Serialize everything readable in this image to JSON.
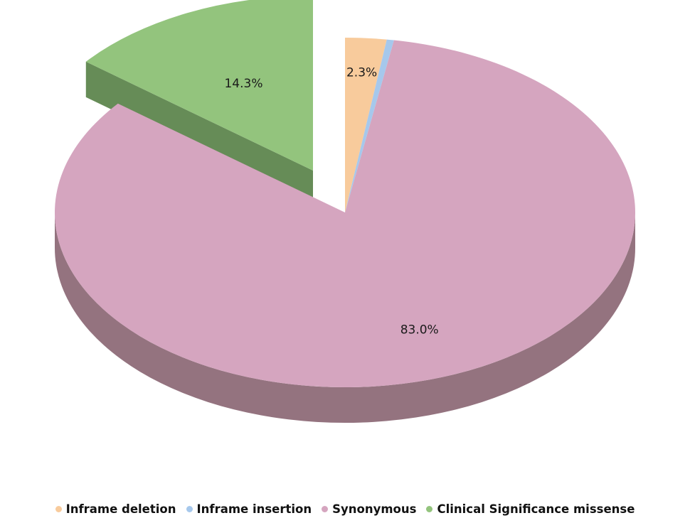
{
  "chart_data": {
    "type": "pie",
    "style": "3d-exploded",
    "title": "",
    "legend_position": "bottom",
    "categories": [
      "Inframe deletion",
      "Inframe insertion",
      "Synonymous",
      "Clinical Significance missense"
    ],
    "values": [
      2.3,
      0.4,
      83.0,
      14.3
    ],
    "data_labels": [
      "2.3%",
      "",
      "83.0%",
      "14.3%"
    ],
    "exploded": [
      false,
      false,
      false,
      true
    ],
    "colors": {
      "Inframe deletion": "#f8cb9c",
      "Inframe insertion": "#a6c8ec",
      "Synonymous": "#d5a5bf",
      "Clinical Significance missense": "#93c47d"
    },
    "side_colors": {
      "Inframe deletion": "#c9a27c",
      "Inframe insertion": "#84a0bd",
      "Synonymous": "#94737f",
      "Clinical Significance missense": "#668c57"
    }
  }
}
